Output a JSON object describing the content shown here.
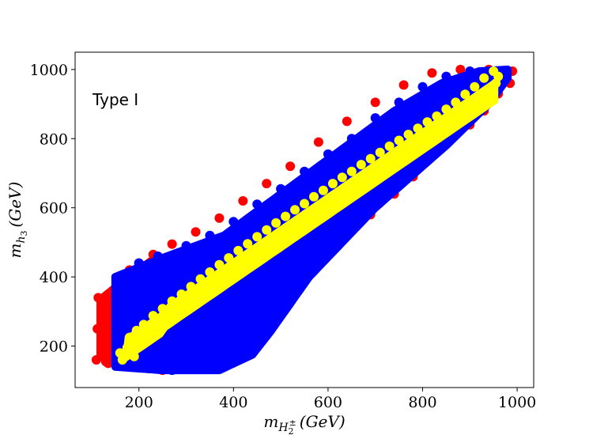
{
  "chart_data": {
    "type": "scatter",
    "title": "",
    "annotation": "Type I",
    "xlabel": {
      "base": "m",
      "sub": "H",
      "sub_sub": "2",
      "sub_sup": "±",
      "unit": "(GeV)"
    },
    "ylabel": {
      "base": "m",
      "sub": "h",
      "sub_sub": "3",
      "unit": "(GeV)"
    },
    "xlim": [
      65,
      1035
    ],
    "ylim": [
      80,
      1050
    ],
    "xticks": [
      200,
      400,
      600,
      800,
      1000
    ],
    "yticks": [
      200,
      400,
      600,
      800,
      1000
    ],
    "grid": false,
    "legend": "none",
    "series": [
      {
        "color": "#ff0000",
        "points": [
          [
            110,
            160
          ],
          [
            112,
            250
          ],
          [
            114,
            340
          ],
          [
            120,
            180
          ],
          [
            122,
            300
          ],
          [
            130,
            155
          ],
          [
            132,
            230
          ],
          [
            135,
            330
          ],
          [
            140,
            160
          ],
          [
            145,
            280
          ],
          [
            150,
            350
          ],
          [
            165,
            395
          ],
          [
            180,
            420
          ],
          [
            200,
            440
          ],
          [
            230,
            465
          ],
          [
            270,
            495
          ],
          [
            320,
            530
          ],
          [
            370,
            570
          ],
          [
            420,
            620
          ],
          [
            470,
            670
          ],
          [
            520,
            720
          ],
          [
            580,
            790
          ],
          [
            640,
            850
          ],
          [
            700,
            905
          ],
          [
            760,
            955
          ],
          [
            820,
            990
          ],
          [
            880,
            1000
          ],
          [
            940,
            1000
          ],
          [
            990,
            995
          ],
          [
            985,
            960
          ],
          [
            960,
            930
          ],
          [
            930,
            880
          ],
          [
            900,
            840
          ],
          [
            860,
            800
          ],
          [
            820,
            750
          ],
          [
            780,
            690
          ],
          [
            740,
            640
          ],
          [
            690,
            580
          ],
          [
            640,
            530
          ],
          [
            600,
            485
          ],
          [
            560,
            440
          ],
          [
            520,
            400
          ],
          [
            490,
            370
          ],
          [
            470,
            330
          ],
          [
            450,
            280
          ],
          [
            430,
            240
          ],
          [
            400,
            200
          ],
          [
            350,
            160
          ],
          [
            300,
            135
          ],
          [
            250,
            130
          ],
          [
            220,
            135
          ],
          [
            180,
            140
          ],
          [
            135,
            150
          ]
        ]
      },
      {
        "color": "#0000ff",
        "band": {
          "lower": [
            [
              150,
              140
            ],
            [
              250,
              130
            ],
            [
              370,
              130
            ],
            [
              440,
              175
            ],
            [
              480,
              245
            ],
            [
              560,
              400
            ],
            [
              700,
              600
            ],
            [
              850,
              780
            ],
            [
              940,
              900
            ],
            [
              980,
              975
            ]
          ],
          "upper": [
            [
              150,
              400
            ],
            [
              250,
              455
            ],
            [
              380,
              520
            ],
            [
              500,
              640
            ],
            [
              620,
              760
            ],
            [
              740,
              880
            ],
            [
              840,
              960
            ],
            [
              920,
              995
            ],
            [
              980,
              1000
            ]
          ]
        },
        "points": [
          [
            155,
            395
          ],
          [
            160,
            150
          ],
          [
            200,
            440
          ],
          [
            240,
            460
          ],
          [
            300,
            490
          ],
          [
            350,
            520
          ],
          [
            400,
            560
          ],
          [
            450,
            610
          ],
          [
            500,
            655
          ],
          [
            550,
            705
          ],
          [
            600,
            755
          ],
          [
            650,
            800
          ],
          [
            700,
            860
          ],
          [
            750,
            905
          ],
          [
            800,
            950
          ],
          [
            850,
            980
          ],
          [
            900,
            995
          ],
          [
            950,
            990
          ],
          [
            970,
            960
          ],
          [
            940,
            920
          ],
          [
            910,
            870
          ],
          [
            870,
            830
          ],
          [
            830,
            780
          ],
          [
            790,
            720
          ],
          [
            750,
            670
          ],
          [
            700,
            610
          ],
          [
            650,
            560
          ],
          [
            600,
            500
          ],
          [
            560,
            450
          ],
          [
            520,
            400
          ],
          [
            490,
            360
          ],
          [
            460,
            300
          ],
          [
            440,
            250
          ],
          [
            420,
            200
          ],
          [
            380,
            150
          ],
          [
            330,
            135
          ],
          [
            270,
            130
          ],
          [
            210,
            140
          ],
          [
            260,
            300
          ],
          [
            320,
            380
          ],
          [
            420,
            460
          ],
          [
            520,
            560
          ],
          [
            620,
            640
          ],
          [
            720,
            740
          ],
          [
            820,
            840
          ],
          [
            880,
            900
          ]
        ]
      },
      {
        "color": "#ffff00",
        "points": [
          [
            160,
            180
          ],
          [
            165,
            160
          ],
          [
            175,
            195
          ],
          [
            185,
            210
          ],
          [
            190,
            170
          ],
          [
            205,
            225
          ],
          [
            220,
            245
          ],
          [
            240,
            262
          ],
          [
            260,
            280
          ],
          [
            280,
            300
          ],
          [
            300,
            318
          ],
          [
            320,
            335
          ],
          [
            340,
            352
          ],
          [
            360,
            370
          ],
          [
            380,
            390
          ],
          [
            400,
            410
          ],
          [
            420,
            430
          ],
          [
            440,
            450
          ],
          [
            460,
            470
          ],
          [
            480,
            492
          ],
          [
            500,
            512
          ],
          [
            520,
            532
          ],
          [
            540,
            552
          ],
          [
            560,
            572
          ],
          [
            580,
            592
          ],
          [
            600,
            612
          ],
          [
            620,
            632
          ],
          [
            640,
            652
          ],
          [
            660,
            672
          ],
          [
            680,
            692
          ],
          [
            700,
            712
          ],
          [
            720,
            732
          ],
          [
            740,
            752
          ],
          [
            760,
            772
          ],
          [
            780,
            792
          ],
          [
            800,
            812
          ],
          [
            820,
            832
          ],
          [
            840,
            852
          ],
          [
            860,
            870
          ],
          [
            880,
            888
          ],
          [
            900,
            905
          ],
          [
            920,
            922
          ],
          [
            940,
            940
          ],
          [
            955,
            960
          ],
          [
            960,
            980
          ],
          [
            950,
            995
          ],
          [
            930,
            975
          ],
          [
            910,
            950
          ],
          [
            890,
            928
          ],
          [
            870,
            905
          ],
          [
            850,
            885
          ],
          [
            830,
            865
          ],
          [
            810,
            848
          ],
          [
            790,
            830
          ],
          [
            770,
            812
          ],
          [
            750,
            795
          ],
          [
            730,
            778
          ],
          [
            710,
            760
          ],
          [
            690,
            742
          ],
          [
            670,
            725
          ],
          [
            650,
            705
          ],
          [
            630,
            688
          ],
          [
            610,
            670
          ],
          [
            590,
            650
          ],
          [
            570,
            632
          ],
          [
            550,
            612
          ],
          [
            530,
            594
          ],
          [
            510,
            575
          ],
          [
            490,
            556
          ],
          [
            470,
            536
          ],
          [
            450,
            516
          ],
          [
            430,
            496
          ],
          [
            410,
            476
          ],
          [
            390,
            455
          ],
          [
            370,
            435
          ],
          [
            350,
            414
          ],
          [
            330,
            394
          ],
          [
            310,
            372
          ],
          [
            290,
            350
          ],
          [
            270,
            330
          ],
          [
            250,
            308
          ],
          [
            230,
            288
          ],
          [
            210,
            262
          ],
          [
            195,
            245
          ],
          [
            180,
            225
          ],
          [
            620,
            610
          ],
          [
            700,
            690
          ],
          [
            780,
            770
          ],
          [
            860,
            850
          ],
          [
            940,
            925
          ]
        ]
      }
    ]
  }
}
